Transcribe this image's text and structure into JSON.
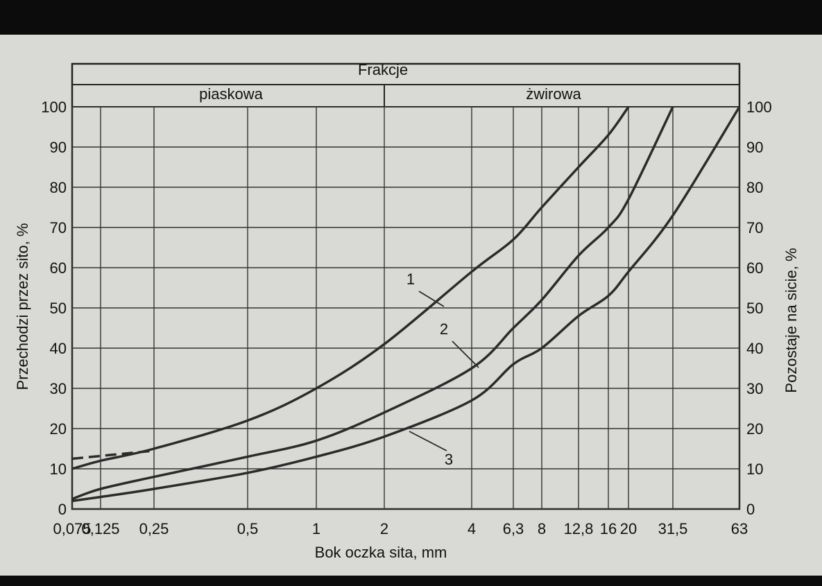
{
  "chart_data": {
    "type": "line",
    "title": "Frakcje",
    "fractions": [
      "piaskowa",
      "żwirowa"
    ],
    "xlabel": "Bok oczka sita, mm",
    "ylabel": "Przechodzi przez sito, %",
    "y2label": "Pozostaje na sicie, %",
    "x_scale": "categorical sieve sizes",
    "x_ticks": [
      "0,075",
      "0,125",
      "0,25",
      "0,5",
      "1",
      "2",
      "4",
      "6,3",
      "8",
      "12,8",
      "16",
      "20",
      "31,5",
      "63"
    ],
    "y_ticks": [
      "0",
      "10",
      "20",
      "30",
      "40",
      "50",
      "60",
      "70",
      "80",
      "90",
      "100"
    ],
    "y2_ticks": [
      "100",
      "90",
      "80",
      "70",
      "60",
      "50",
      "40",
      "30",
      "20",
      "10",
      "0"
    ],
    "ylim": [
      0,
      100
    ],
    "grid": true,
    "series": [
      {
        "name": "1",
        "x": [
          "0,075",
          "0,125",
          "0,25",
          "0,5",
          "1",
          "2",
          "4",
          "6,3",
          "8",
          "12,8",
          "16",
          "20"
        ],
        "values": [
          10,
          12,
          15,
          22,
          30,
          41,
          59,
          67,
          75,
          85,
          93,
          100
        ]
      },
      {
        "name": "2",
        "x": [
          "0,075",
          "0,125",
          "0,25",
          "0,5",
          "1",
          "2",
          "4",
          "6,3",
          "8",
          "12,8",
          "16",
          "20",
          "31,5"
        ],
        "values": [
          2.5,
          5,
          8,
          13,
          17,
          24,
          35,
          45,
          52,
          63,
          70,
          77,
          100
        ]
      },
      {
        "name": "3",
        "x": [
          "0,075",
          "0,125",
          "0,25",
          "0,5",
          "1",
          "2",
          "4",
          "6,3",
          "8",
          "12,8",
          "16",
          "20",
          "31,5",
          "63"
        ],
        "values": [
          2,
          3,
          5,
          9,
          13,
          18,
          27,
          36,
          40,
          48,
          53,
          59,
          73,
          100
        ]
      }
    ],
    "dashed_segment": {
      "x": [
        "0,075",
        "0,25"
      ],
      "values": [
        12.5,
        14.5
      ]
    },
    "curve_labels": [
      "1",
      "2",
      "3"
    ]
  }
}
